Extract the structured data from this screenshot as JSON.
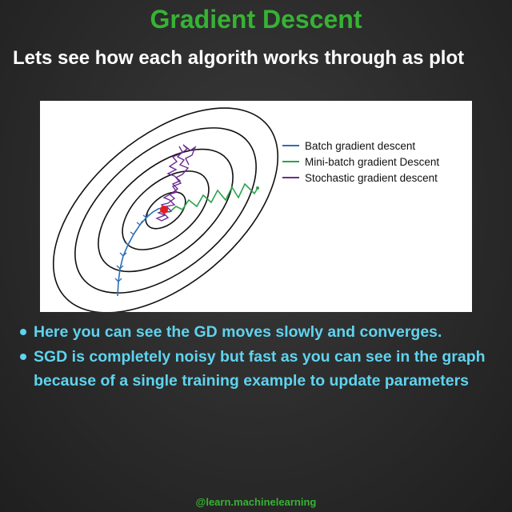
{
  "title": "Gradient Descent",
  "subtitle": "Lets see how each algorith works through as plot",
  "legend": [
    {
      "label": "Batch gradient descent",
      "color": "#2e6fb5"
    },
    {
      "label": "Mini-batch gradient Descent",
      "color": "#2ca34a"
    },
    {
      "label": "Stochastic gradient descent",
      "color": "#6a2d91"
    }
  ],
  "bullets": [
    "Here you can see the GD moves slowly and converges.",
    "SGD is completely noisy but fast as you can see in the graph because of a single training example to update parameters"
  ],
  "footer": "@learn.machinelearning",
  "colors": {
    "title": "#37b234",
    "bullet": "#5fd3ef",
    "minimum": "#e02020"
  }
}
